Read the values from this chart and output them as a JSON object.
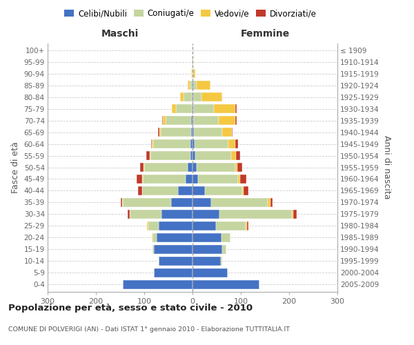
{
  "age_groups_bottom_to_top": [
    "0-4",
    "5-9",
    "10-14",
    "15-19",
    "20-24",
    "25-29",
    "30-34",
    "35-39",
    "40-44",
    "45-49",
    "50-54",
    "55-59",
    "60-64",
    "65-69",
    "70-74",
    "75-79",
    "80-84",
    "85-89",
    "90-94",
    "95-99",
    "100+"
  ],
  "birth_years_bottom_to_top": [
    "2005-2009",
    "2000-2004",
    "1995-1999",
    "1990-1994",
    "1985-1989",
    "1980-1984",
    "1975-1979",
    "1970-1974",
    "1965-1969",
    "1960-1964",
    "1955-1959",
    "1950-1954",
    "1945-1949",
    "1940-1944",
    "1935-1939",
    "1930-1934",
    "1925-1929",
    "1920-1924",
    "1915-1919",
    "1910-1914",
    "≤ 1909"
  ],
  "males": {
    "celibi": [
      145,
      80,
      70,
      80,
      75,
      70,
      65,
      45,
      30,
      15,
      10,
      5,
      4,
      3,
      3,
      2,
      2,
      1,
      0,
      0,
      0
    ],
    "coniugati": [
      0,
      0,
      0,
      3,
      8,
      22,
      65,
      100,
      75,
      88,
      90,
      82,
      78,
      63,
      53,
      33,
      16,
      5,
      2,
      1,
      0
    ],
    "vedovi": [
      0,
      0,
      0,
      0,
      1,
      2,
      0,
      1,
      0,
      1,
      1,
      2,
      2,
      3,
      5,
      8,
      8,
      4,
      1,
      0,
      0
    ],
    "divorziati": [
      0,
      0,
      0,
      0,
      0,
      0,
      5,
      3,
      8,
      12,
      8,
      7,
      2,
      2,
      2,
      0,
      0,
      0,
      0,
      0,
      0
    ]
  },
  "females": {
    "nubili": [
      138,
      73,
      58,
      62,
      60,
      48,
      55,
      38,
      25,
      12,
      8,
      5,
      4,
      3,
      2,
      2,
      1,
      1,
      0,
      0,
      0
    ],
    "coniugate": [
      0,
      0,
      3,
      8,
      18,
      62,
      150,
      118,
      78,
      82,
      80,
      75,
      70,
      58,
      52,
      42,
      18,
      8,
      2,
      0,
      0
    ],
    "vedove": [
      0,
      0,
      0,
      0,
      1,
      3,
      3,
      5,
      3,
      5,
      5,
      10,
      15,
      20,
      35,
      45,
      42,
      28,
      3,
      1,
      0
    ],
    "divorziate": [
      0,
      0,
      0,
      0,
      0,
      3,
      8,
      5,
      10,
      12,
      10,
      8,
      5,
      2,
      2,
      2,
      0,
      0,
      0,
      0,
      0
    ]
  },
  "colors": {
    "celibi_nubili": "#4472C4",
    "coniugati": "#C5D5A0",
    "vedovi": "#F5C842",
    "divorziati": "#C0392B"
  },
  "xlim": 300,
  "title": "Popolazione per età, sesso e stato civile - 2010",
  "subtitle": "COMUNE DI POLVERIGI (AN) - Dati ISTAT 1° gennaio 2010 - Elaborazione TUTTITALIA.IT",
  "ylabel_left": "Fasce di età",
  "ylabel_right": "Anni di nascita",
  "legend_labels": [
    "Celibi/Nubili",
    "Coniugati/e",
    "Vedovi/e",
    "Divorziati/e"
  ],
  "maschi_label": "Maschi",
  "femmine_label": "Femmine",
  "bg_color": "#FFFFFF",
  "grid_color": "#CCCCCC",
  "tick_label_color": "#666666",
  "axis_label_color": "#555555"
}
